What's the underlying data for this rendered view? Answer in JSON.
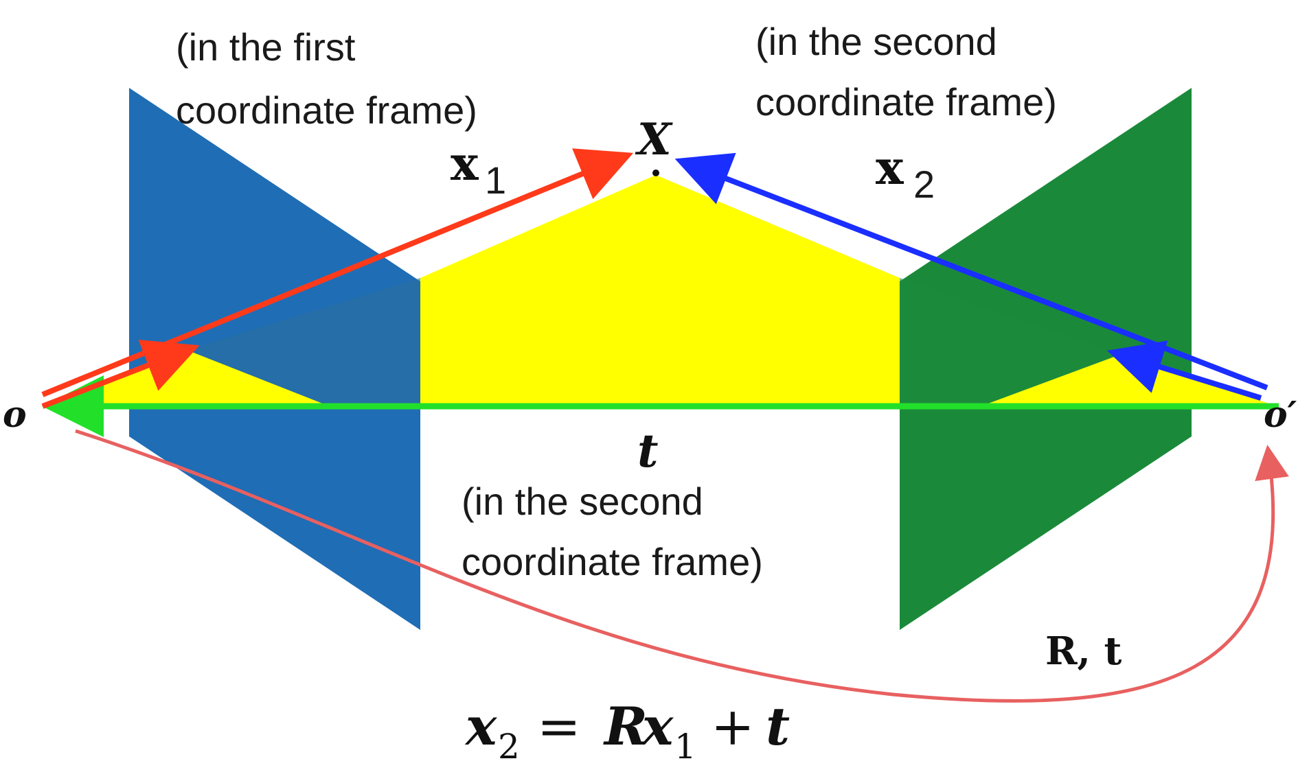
{
  "labels": {
    "first_frame_line1": "(in the first",
    "first_frame_line2": "coordinate frame)",
    "second_frame_top_line1": "(in the second",
    "second_frame_top_line2": "coordinate frame)",
    "second_frame_bottom_line1": "(in the second",
    "second_frame_bottom_line2": "coordinate frame)",
    "point_X": "X",
    "vector_x1_base": "x",
    "vector_x1_sub": "1",
    "vector_x2_base": "x",
    "vector_x2_sub": "2",
    "origin_o": "o",
    "origin_o_prime": "o′",
    "translation_t": "t",
    "transform_Rt": "R, t"
  },
  "equation": {
    "lhs_base": "x",
    "lhs_sub": "2",
    "equals": "=",
    "R": "R",
    "x_base": "x",
    "x_sub": "1",
    "plus": "+",
    "t": "t"
  },
  "colors": {
    "left_plane": "#1f6db5",
    "right_plane": "#1a8a3a",
    "triangle": "#ffff00",
    "x1_arrow": "#ff3a1a",
    "x2_arrow": "#1a2eff",
    "baseline_arrow": "#22e02a",
    "transform_curve": "#e86060"
  }
}
